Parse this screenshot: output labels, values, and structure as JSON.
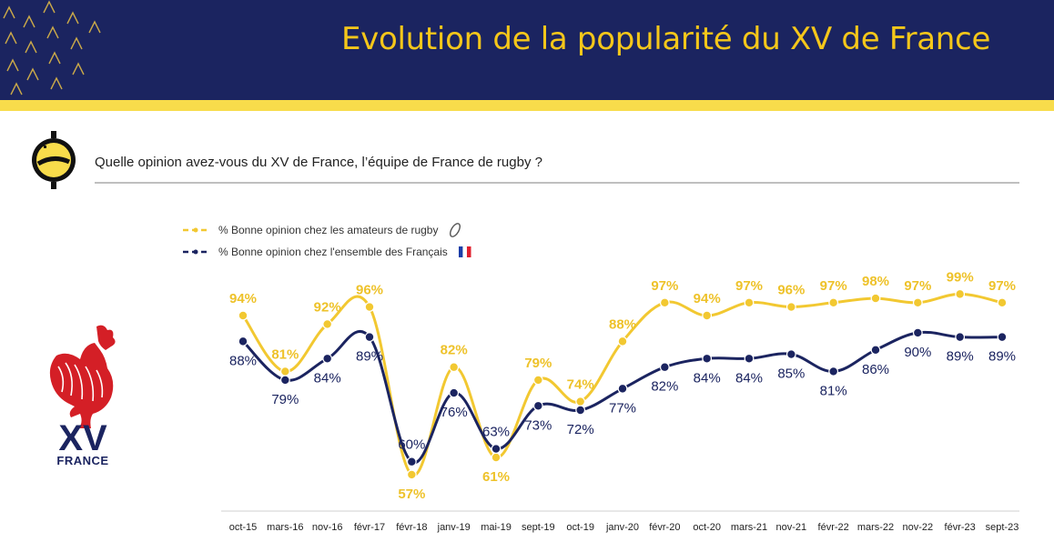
{
  "header": {
    "title": "Evolution de la popularité du XV de France",
    "bar_color": "#1b2460",
    "accent_color": "#f8dc4b"
  },
  "question": {
    "text": "Quelle opinion avez-vous du XV de France, l’équipe de France de rugby ?",
    "icon": "opinion-tag-icon"
  },
  "logo": {
    "icon": "rooster-icon",
    "text_big": "XV",
    "text_small": "FRANCE"
  },
  "legend": {
    "items": [
      {
        "label": "% Bonne opinion chez les amateurs de rugby",
        "color": "#f2c831",
        "symbol": "rugby-ball-icon"
      },
      {
        "label": "% Bonne opinion chez l'ensemble des Français",
        "color": "#1b2460",
        "symbol": "french-flag-icon"
      }
    ]
  },
  "chart_data": {
    "type": "line",
    "categories": [
      "oct-15",
      "mars-16",
      "nov-16",
      "févr-17",
      "févr-18",
      "janv-19",
      "mai-19",
      "sept-19",
      "oct-19",
      "janv-20",
      "févr-20",
      "oct-20",
      "mars-21",
      "nov-21",
      "févr-22",
      "mars-22",
      "nov-22",
      "févr-23",
      "sept-23"
    ],
    "series": [
      {
        "name": "% Bonne opinion chez les amateurs de rugby",
        "color": "#f2c831",
        "values": [
          94,
          81,
          92,
          96,
          57,
          82,
          61,
          79,
          74,
          88,
          97,
          94,
          97,
          96,
          97,
          98,
          97,
          99,
          97
        ],
        "labels": [
          "94%",
          "81%",
          "92%",
          "96%",
          "57%",
          "82%",
          "61%",
          "79%",
          "74%",
          "88%",
          "97%",
          "94%",
          "97%",
          "96%",
          "97%",
          "98%",
          "97%",
          "99%",
          "97%"
        ]
      },
      {
        "name": "% Bonne opinion chez l'ensemble des Français",
        "color": "#1b2460",
        "values": [
          88,
          79,
          84,
          89,
          60,
          76,
          63,
          73,
          72,
          77,
          82,
          84,
          84,
          85,
          81,
          86,
          90,
          89,
          89
        ],
        "labels": [
          "88%",
          "79%",
          "84%",
          "89%",
          "60%",
          "76%",
          "63%",
          "73%",
          "72%",
          "77%",
          "82%",
          "84%",
          "84%",
          "85%",
          "81%",
          "86%",
          "90%",
          "89%",
          "89%"
        ]
      }
    ],
    "ylim": [
      50,
      105
    ],
    "grid": false,
    "legend_position": "top-left"
  }
}
